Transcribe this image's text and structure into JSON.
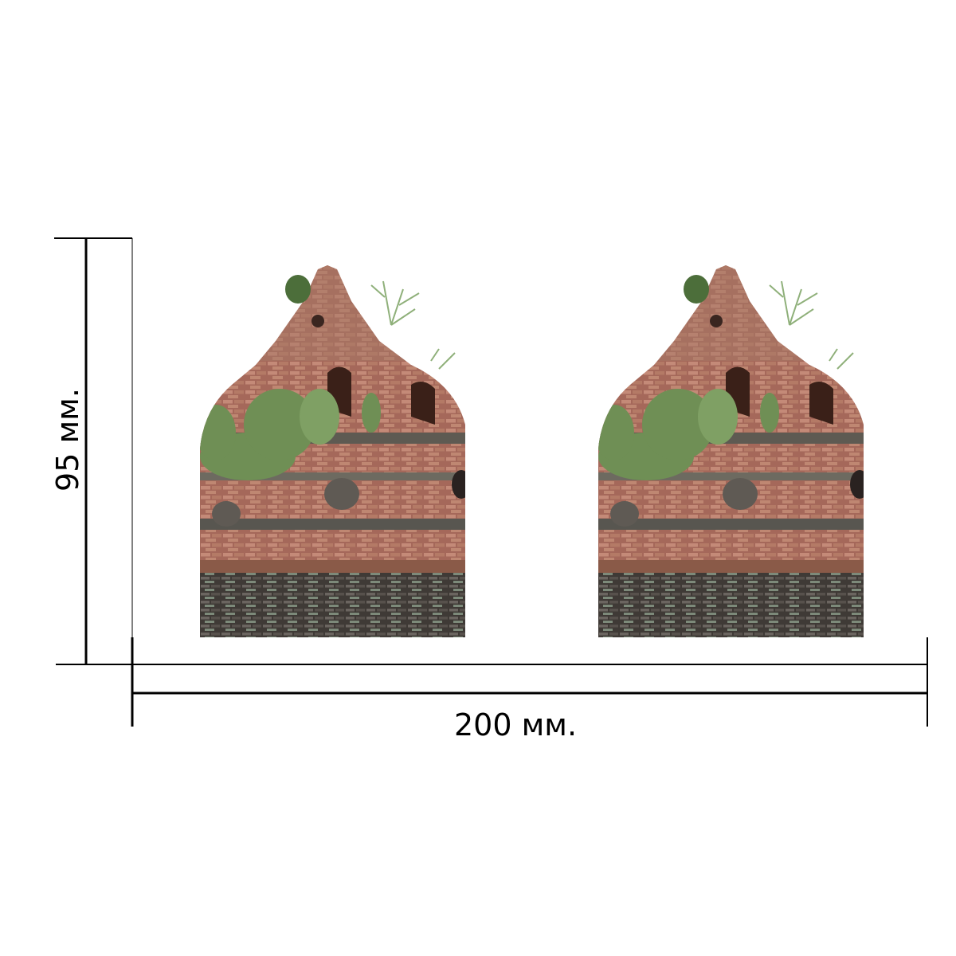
{
  "dimensions": {
    "width_label": "200 мм.",
    "height_label": "95 мм."
  },
  "print_area": {
    "images": [
      {
        "subject": "brick-stupa-photo"
      },
      {
        "subject": "brick-stupa-photo"
      }
    ]
  },
  "colors": {
    "line": "#000000",
    "brick": "#9a5f4a",
    "mortar": "#c9a48c",
    "foliage": "#6f8f55",
    "dark_base": "#4a4540"
  }
}
